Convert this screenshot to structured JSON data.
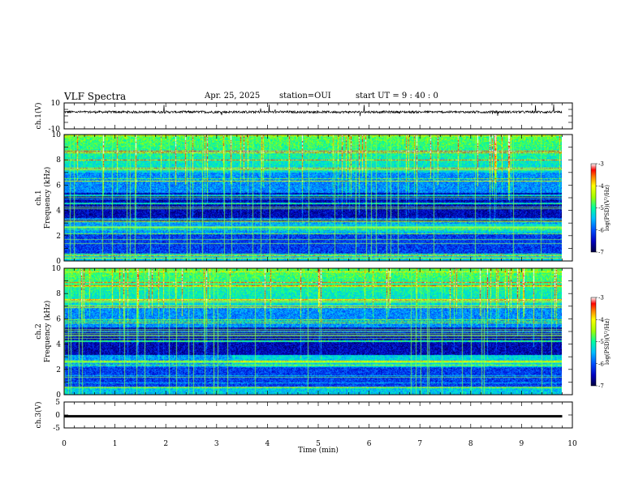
{
  "header": {
    "title": "VLF Spectra",
    "date": "Apr. 25, 2025",
    "station": "station=OUI",
    "start": "start  UT =   9 : 40 : 0"
  },
  "chart_data": [
    {
      "type": "line",
      "ylabel": "ch.1(V)",
      "ylim": [
        -10,
        10
      ],
      "yticks": [
        "10",
        "-10"
      ],
      "xlim": [
        0,
        10
      ],
      "description_level": 3.0
    },
    {
      "type": "heatmap",
      "ylabel_line1": "ch.1",
      "ylabel_line2": "Frequency (kHz)",
      "ylim": [
        0,
        10
      ],
      "yticks": [
        "0",
        "2",
        "4",
        "6",
        "8",
        "10"
      ],
      "xlim": [
        0,
        10
      ],
      "data_end_min": 9.8,
      "colorbar": {
        "label": "log(PSD)(V²/Hz)",
        "ticks": [
          "-3",
          "-4",
          "-5",
          "-6",
          "-7"
        ],
        "range": [
          -7,
          -3
        ]
      }
    },
    {
      "type": "heatmap",
      "ylabel_line1": "ch.2",
      "ylabel_line2": "Frequency (kHz)",
      "ylim": [
        0,
        10
      ],
      "yticks": [
        "0",
        "2",
        "4",
        "6",
        "8",
        "10"
      ],
      "xlim": [
        0,
        10
      ],
      "data_end_min": 9.8,
      "colorbar": {
        "label": "log(PSD)(V²/Hz)",
        "ticks": [
          "-3",
          "-4",
          "-5",
          "-6",
          "-7"
        ],
        "range": [
          -7,
          -3
        ]
      }
    },
    {
      "type": "line",
      "ylabel": "ch.3(V)",
      "ylim": [
        -5,
        5
      ],
      "yticks": [
        "5",
        "0",
        "-5"
      ],
      "xlim": [
        0,
        10
      ],
      "level": -0.5
    }
  ],
  "xaxis": {
    "label": "Time (min)",
    "ticks": [
      "0",
      "1",
      "2",
      "3",
      "4",
      "5",
      "6",
      "7",
      "8",
      "9",
      "10"
    ]
  },
  "colors": {
    "colormap": [
      "#000040",
      "#0000c0",
      "#0050ff",
      "#00c0ff",
      "#00ffa0",
      "#a0ff00",
      "#ffff00",
      "#ff8000",
      "#ff0000",
      "#ffffff"
    ]
  }
}
